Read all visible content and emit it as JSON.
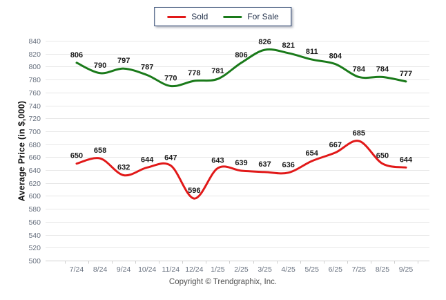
{
  "footer": {
    "copyright": "Copyright © Trendgraphix, Inc."
  },
  "colors": {
    "sold": "#e11919",
    "for_sale": "#1a7a1a",
    "grid": "#e7e7e7",
    "axis": "#cfcfcf",
    "tick_label": "#68717f",
    "data_label": "#1a1a1a",
    "legend_border": "#1f3864"
  },
  "chart_data": {
    "type": "line",
    "title": "",
    "xlabel": "",
    "ylabel": "Average Price (in $,000)",
    "categories": [
      "7/24",
      "8/24",
      "9/24",
      "10/24",
      "11/24",
      "12/24",
      "1/25",
      "2/25",
      "3/25",
      "4/25",
      "5/25",
      "6/25",
      "7/25",
      "8/25",
      "9/25"
    ],
    "series": [
      {
        "name": "Sold",
        "color": "#e11919",
        "values": [
          650,
          658,
          632,
          644,
          647,
          596,
          643,
          639,
          637,
          636,
          654,
          667,
          685,
          650,
          644
        ]
      },
      {
        "name": "For Sale",
        "color": "#1a7a1a",
        "values": [
          806,
          790,
          797,
          787,
          770,
          778,
          781,
          806,
          826,
          821,
          811,
          804,
          784,
          784,
          777
        ]
      }
    ],
    "ylim": [
      500,
      840
    ],
    "ytick_step": 20,
    "grid": true,
    "legend_position": "top-center",
    "data_labels": true,
    "line_style": "smooth"
  }
}
